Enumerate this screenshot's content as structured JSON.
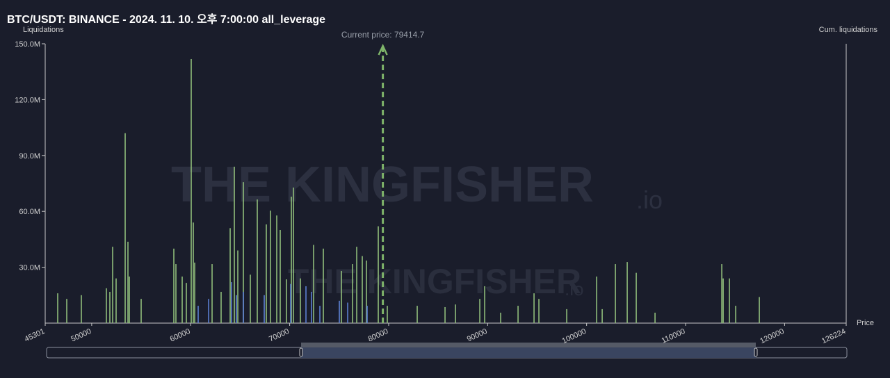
{
  "chart_data": {
    "type": "bar",
    "title": "BTC/USDT: BINANCE - 2024. 11. 10. 오후 7:00:00 all_leverage",
    "y_label": "Liquidations",
    "y2_label": "Cum. liquidations",
    "x_label": "Price",
    "annotation": "Current price: 79414.7",
    "current_price": 79414.7,
    "watermark": "THE KINGFISHER",
    "watermark_suffix": ".io",
    "xlim": [
      45301,
      126224
    ],
    "xticks": [
      45301,
      50000,
      60000,
      70000,
      80000,
      90000,
      100000,
      110000,
      120000,
      126224
    ],
    "ylim": [
      0,
      150000000
    ],
    "yticks": [
      {
        "value": 30000000,
        "label": "30.0M"
      },
      {
        "value": 60000000,
        "label": "60.0M"
      },
      {
        "value": 90000000,
        "label": "90.0M"
      },
      {
        "value": 120000000,
        "label": "120.0M"
      },
      {
        "value": 150000000,
        "label": "150.0M"
      }
    ],
    "series": [
      {
        "color": "#8fbc7a",
        "x": [
          46565,
          47479,
          48954,
          51483,
          51834,
          52115,
          52466,
          53380,
          53661,
          53801,
          54996,
          58297,
          58507,
          59140,
          59561,
          60053,
          60264,
          60405,
          62161,
          63074,
          63988,
          64409,
          64760,
          65322,
          66025,
          66727,
          67640,
          68062,
          68694,
          69045,
          69678,
          70170,
          70381,
          71083,
          72418,
          73401,
          75228,
          76352,
          76773,
          77335,
          77757,
          78951,
          79864,
          82885,
          85695,
          86749,
          89208,
          89700,
          91315,
          93072,
          94687,
          95179,
          97989,
          101010,
          101572,
          102907,
          104101,
          105014,
          106911,
          113655,
          113795,
          114427,
          115059,
          117448
        ],
        "values": [
          16000000,
          13000000,
          15000000,
          18700000,
          16800000,
          41000000,
          24000000,
          102000000,
          43700000,
          25000000,
          13000000,
          40000000,
          31700000,
          25000000,
          21600000,
          141800000,
          54000000,
          32500000,
          31700000,
          16800000,
          51000000,
          84000000,
          39000000,
          75700000,
          26000000,
          66400000,
          53000000,
          60400000,
          57800000,
          50000000,
          23500000,
          67900000,
          72800000,
          24000000,
          42000000,
          40000000,
          28000000,
          31700000,
          41000000,
          36000000,
          33600000,
          52000000,
          9300000,
          9300000,
          8600000,
          10000000,
          13000000,
          19800000,
          5600000,
          9300000,
          16000000,
          13000000,
          7500000,
          25000000,
          7500000,
          31700000,
          32800000,
          27000000,
          5600000,
          31700000,
          24000000,
          24000000,
          9300000,
          14000000
        ]
      },
      {
        "color": "#5b7fd1",
        "x": [
          60756,
          61810,
          64128,
          64620,
          65322,
          67430,
          70099,
          71645,
          72207,
          73050,
          75017,
          75860,
          77827
        ],
        "values": [
          9300000,
          13000000,
          22000000,
          15000000,
          16800000,
          15000000,
          21000000,
          19800000,
          16800000,
          9300000,
          12000000,
          11000000,
          9300000
        ]
      }
    ]
  }
}
